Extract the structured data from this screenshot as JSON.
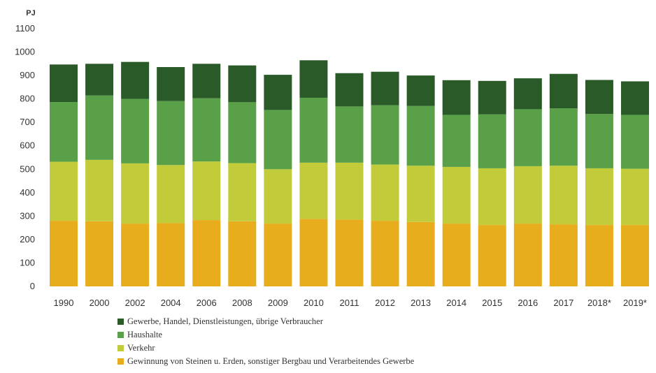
{
  "chart_data": {
    "type": "bar",
    "stacked": true,
    "unit_label": "PJ",
    "categories": [
      "1990",
      "2000",
      "2002",
      "2004",
      "2006",
      "2008",
      "2009",
      "2010",
      "2011",
      "2012",
      "2013",
      "2014",
      "2015",
      "2016",
      "2017",
      "2018*",
      "2019*"
    ],
    "ylim": [
      0,
      1100
    ],
    "yticks": [
      0,
      100,
      200,
      300,
      400,
      500,
      600,
      700,
      800,
      900,
      1000,
      1100
    ],
    "grid": false,
    "legend_position": "bottom",
    "series": [
      {
        "name": "Gewinnung von Steinen u. Erden, sonstiger Bergbau und Verarbeitendes Gewerbe",
        "color": "#e8ad1c",
        "values": [
          280,
          278,
          268,
          270,
          283,
          278,
          268,
          288,
          285,
          280,
          275,
          268,
          262,
          268,
          265,
          262,
          262
        ]
      },
      {
        "name": "Verkehr",
        "color": "#c2cc3b",
        "values": [
          252,
          262,
          257,
          248,
          250,
          248,
          232,
          240,
          243,
          240,
          240,
          242,
          242,
          245,
          250,
          242,
          240
        ]
      },
      {
        "name": "Haushalte",
        "color": "#5aa048",
        "values": [
          255,
          275,
          275,
          273,
          270,
          260,
          253,
          277,
          240,
          253,
          255,
          222,
          230,
          243,
          245,
          232,
          230
        ]
      },
      {
        "name": "Gewerbe, Handel, Dienstleistungen, übrige Verbraucher",
        "color": "#2a5a28",
        "values": [
          160,
          135,
          158,
          145,
          147,
          157,
          150,
          160,
          142,
          143,
          130,
          148,
          143,
          132,
          147,
          145,
          143
        ]
      }
    ]
  }
}
